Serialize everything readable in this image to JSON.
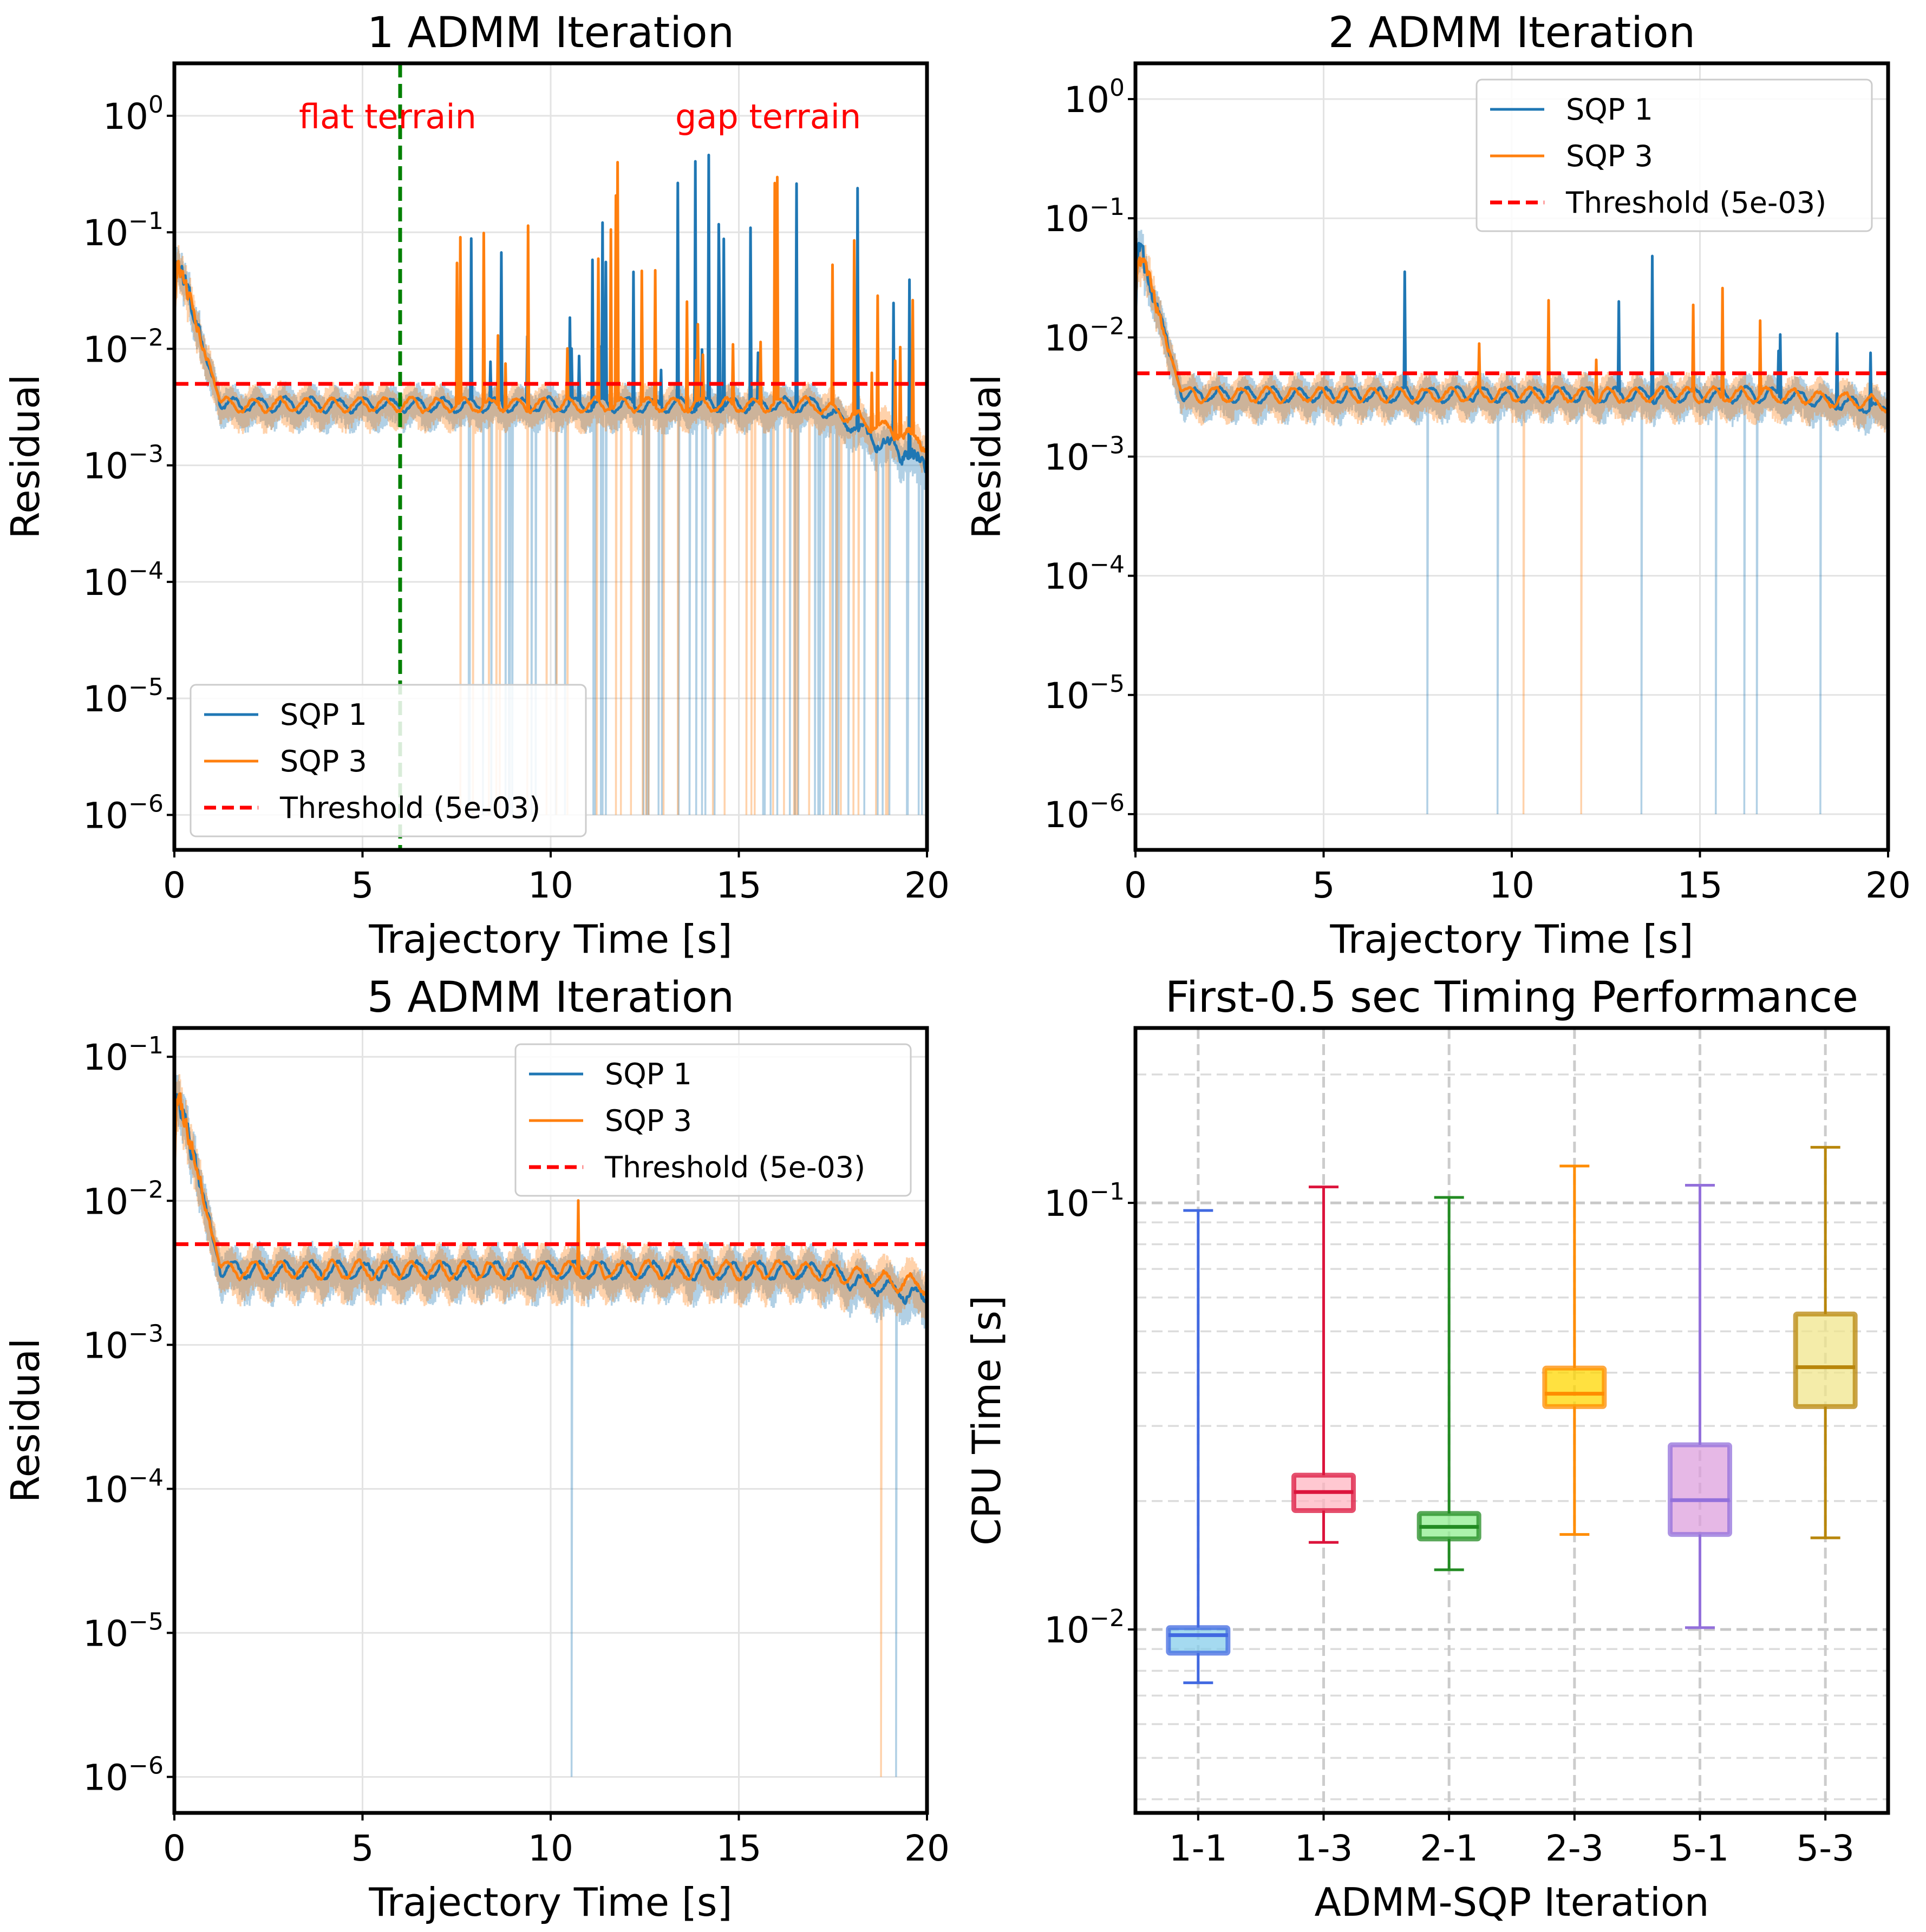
{
  "chart_data": [
    {
      "type": "line",
      "title": "1 ADMM Iteration",
      "xlabel": "Trajectory Time [s]",
      "ylabel": "Residual",
      "xlim": [
        0,
        20
      ],
      "ylim_log10": [
        -6.3,
        0.45
      ],
      "xticks": [
        "0",
        "5",
        "10",
        "15",
        "20"
      ],
      "yticks_exp": [
        "0",
        "−1",
        "−2",
        "−3",
        "−4",
        "−5",
        "−6"
      ],
      "series": [
        {
          "name": "SQP 1",
          "color": "#1f77b4"
        },
        {
          "name": "SQP 3",
          "color": "#ff7f0e"
        },
        {
          "name": "Threshold (5e-03)",
          "color": "#ff0000",
          "value": 0.005
        }
      ],
      "legend_loc": "lower-left",
      "annotations": [
        {
          "text": "flat terrain",
          "color": "#ff0000"
        },
        {
          "text": "gap terrain",
          "color": "#ff0000"
        }
      ],
      "vline": {
        "x": 6.0,
        "color": "#008000"
      }
    },
    {
      "type": "line",
      "title": "2 ADMM Iteration",
      "xlabel": "Trajectory Time [s]",
      "ylabel": "Residual",
      "xlim": [
        0,
        20
      ],
      "ylim_log10": [
        -6.3,
        0.3
      ],
      "xticks": [
        "0",
        "5",
        "10",
        "15",
        "20"
      ],
      "yticks_exp": [
        "0",
        "−1",
        "−2",
        "−3",
        "−4",
        "−5",
        "−6"
      ],
      "series": [
        {
          "name": "SQP 1",
          "color": "#1f77b4"
        },
        {
          "name": "SQP 3",
          "color": "#ff7f0e"
        },
        {
          "name": "Threshold (5e-03)",
          "color": "#ff0000",
          "value": 0.005
        }
      ],
      "legend_loc": "upper-right"
    },
    {
      "type": "line",
      "title": "5 ADMM Iteration",
      "xlabel": "Trajectory Time [s]",
      "ylabel": "Residual",
      "xlim": [
        0,
        20
      ],
      "ylim_log10": [
        -6.25,
        -0.8
      ],
      "xticks": [
        "0",
        "5",
        "10",
        "15",
        "20"
      ],
      "yticks_exp": [
        "−1",
        "−2",
        "−3",
        "−4",
        "−5",
        "−6"
      ],
      "series": [
        {
          "name": "SQP 1",
          "color": "#1f77b4"
        },
        {
          "name": "SQP 3",
          "color": "#ff7f0e"
        },
        {
          "name": "Threshold (5e-03)",
          "color": "#ff0000",
          "value": 0.005
        }
      ],
      "legend_loc": "upper-right"
    },
    {
      "type": "box",
      "title": "First-0.5 sec Timing Performance",
      "xlabel": "ADMM-SQP Iteration",
      "ylabel": "CPU Time [s]",
      "ylim_log10": [
        -2.43,
        -0.59
      ],
      "yticks_exp": [
        "−1",
        "−2"
      ],
      "categories": [
        "1-1",
        "1-3",
        "2-1",
        "2-3",
        "5-1",
        "5-3"
      ],
      "boxes": [
        {
          "label": "1-1",
          "whislo": 0.0075,
          "q1": 0.0088,
          "med": 0.0097,
          "q3": 0.0101,
          "whishi": 0.096,
          "edge": "#4169e1",
          "fill": "#87ceeb"
        },
        {
          "label": "1-3",
          "whislo": 0.016,
          "q1": 0.019,
          "med": 0.021,
          "q3": 0.023,
          "whishi": 0.109,
          "edge": "#dc143c",
          "fill": "#ffb6c1"
        },
        {
          "label": "2-1",
          "whislo": 0.0138,
          "q1": 0.0163,
          "med": 0.0174,
          "q3": 0.0187,
          "whishi": 0.103,
          "edge": "#228b22",
          "fill": "#90ee90"
        },
        {
          "label": "2-3",
          "whislo": 0.0167,
          "q1": 0.0333,
          "med": 0.0357,
          "q3": 0.041,
          "whishi": 0.122,
          "edge": "#ff8c00",
          "fill": "#ffd700"
        },
        {
          "label": "5-1",
          "whislo": 0.0101,
          "q1": 0.0167,
          "med": 0.0201,
          "q3": 0.0271,
          "whishi": 0.11,
          "edge": "#9370db",
          "fill": "#dda0dd"
        },
        {
          "label": "5-3",
          "whislo": 0.0164,
          "q1": 0.0333,
          "med": 0.0412,
          "q3": 0.0549,
          "whishi": 0.135,
          "edge": "#b8860b",
          "fill": "#f0e68c"
        }
      ]
    }
  ]
}
